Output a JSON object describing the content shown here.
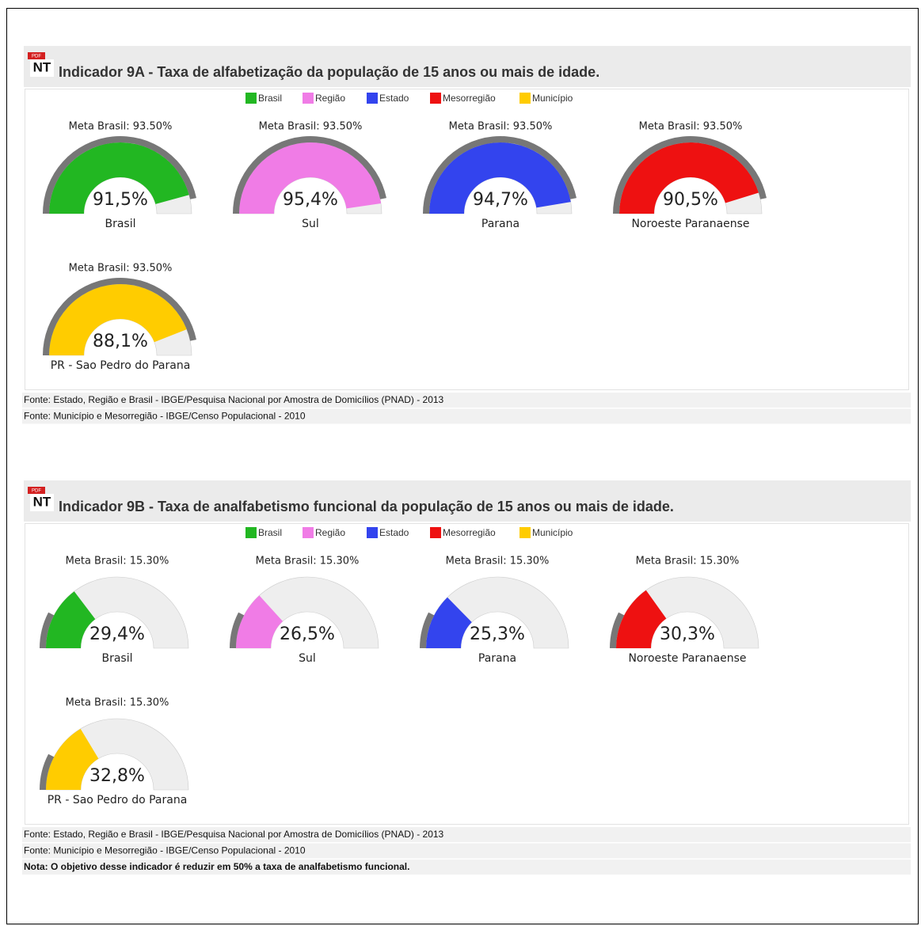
{
  "sections": [
    {
      "icon": {
        "badge": "PDF",
        "text": "NT"
      },
      "title": "Indicador 9A - Taxa de alfabetização da população de 15 anos ou mais de idade.",
      "legend": [
        {
          "name": "Brasil",
          "color": "#22b722"
        },
        {
          "name": "Região",
          "color": "#f07ce6"
        },
        {
          "name": "Estado",
          "color": "#3344ee"
        },
        {
          "name": "Mesorregião",
          "color": "#ee1111"
        },
        {
          "name": "Município",
          "color": "#ffcc00"
        }
      ],
      "range": [
        0,
        100
      ],
      "gauges": [
        {
          "goal": 93.5,
          "goal_label": "Meta Brasil: 93.50%",
          "value": 91.5,
          "value_label": "91,5%",
          "name": "Brasil",
          "color": "#22b722"
        },
        {
          "goal": 93.5,
          "goal_label": "Meta Brasil: 93.50%",
          "value": 95.4,
          "value_label": "95,4%",
          "name": "Sul",
          "color": "#f07ce6"
        },
        {
          "goal": 93.5,
          "goal_label": "Meta Brasil: 93.50%",
          "value": 94.7,
          "value_label": "94,7%",
          "name": "Parana",
          "color": "#3344ee"
        },
        {
          "goal": 93.5,
          "goal_label": "Meta Brasil: 93.50%",
          "value": 90.5,
          "value_label": "90,5%",
          "name": "Noroeste Paranaense",
          "color": "#ee1111"
        },
        {
          "goal": 93.5,
          "goal_label": "Meta Brasil: 93.50%",
          "value": 88.1,
          "value_label": "88,1%",
          "name": "PR - Sao Pedro do Parana",
          "color": "#ffcc00"
        }
      ],
      "sources": [
        "Fonte: Estado, Região e Brasil - IBGE/Pesquisa Nacional por Amostra de Domicílios (PNAD) - 2013",
        "Fonte: Município e Mesorregião - IBGE/Censo Populacional - 2010"
      ]
    },
    {
      "icon": {
        "badge": "PDF",
        "text": "NT"
      },
      "title": "Indicador 9B - Taxa de analfabetismo funcional da população de 15 anos ou mais de idade.",
      "legend": [
        {
          "name": "Brasil",
          "color": "#22b722"
        },
        {
          "name": "Região",
          "color": "#f07ce6"
        },
        {
          "name": "Estado",
          "color": "#3344ee"
        },
        {
          "name": "Mesorregião",
          "color": "#ee1111"
        },
        {
          "name": "Município",
          "color": "#ffcc00"
        }
      ],
      "range": [
        0,
        100
      ],
      "gauges": [
        {
          "goal": 15.3,
          "goal_label": "Meta Brasil: 15.30%",
          "value": 29.4,
          "value_label": "29,4%",
          "name": "Brasil",
          "color": "#22b722"
        },
        {
          "goal": 15.3,
          "goal_label": "Meta Brasil: 15.30%",
          "value": 26.5,
          "value_label": "26,5%",
          "name": "Sul",
          "color": "#f07ce6"
        },
        {
          "goal": 15.3,
          "goal_label": "Meta Brasil: 15.30%",
          "value": 25.3,
          "value_label": "25,3%",
          "name": "Parana",
          "color": "#3344ee"
        },
        {
          "goal": 15.3,
          "goal_label": "Meta Brasil: 15.30%",
          "value": 30.3,
          "value_label": "30,3%",
          "name": "Noroeste Paranaense",
          "color": "#ee1111"
        },
        {
          "goal": 15.3,
          "goal_label": "Meta Brasil: 15.30%",
          "value": 32.8,
          "value_label": "32,8%",
          "name": "PR - Sao Pedro do Parana",
          "color": "#ffcc00"
        }
      ],
      "sources": [
        "Fonte: Estado, Região e Brasil - IBGE/Pesquisa Nacional por Amostra de Domicílios (PNAD) - 2013",
        "Fonte: Município e Mesorregião - IBGE/Censo Populacional - 2010"
      ],
      "note": "Nota: O objetivo desse indicador é reduzir em 50% a taxa de analfabetismo funcional."
    }
  ]
}
